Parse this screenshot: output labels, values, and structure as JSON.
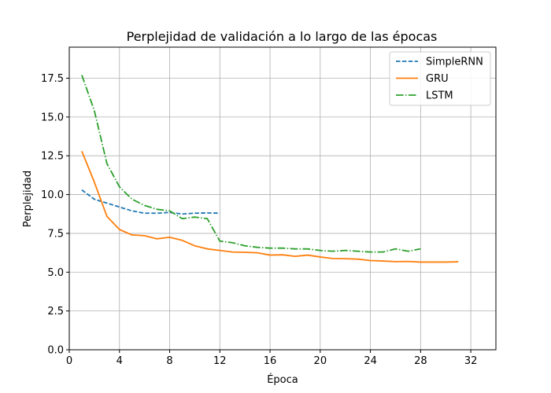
{
  "chart_data": {
    "type": "line",
    "title": "Perplejidad de validación a lo largo de las épocas",
    "xlabel": "Época",
    "ylabel": "Perplejidad",
    "xlim": [
      0,
      34
    ],
    "ylim": [
      0,
      19.5
    ],
    "xticks": [
      0,
      4,
      8,
      12,
      16,
      20,
      24,
      28,
      32
    ],
    "yticks": [
      0.0,
      2.5,
      5.0,
      7.5,
      10.0,
      12.5,
      15.0,
      17.5
    ],
    "ytick_labels": [
      "0.0",
      "2.5",
      "5.0",
      "7.5",
      "10.0",
      "12.5",
      "15.0",
      "17.5"
    ],
    "grid": true,
    "legend_position": "top-right",
    "series": [
      {
        "name": "SimpleRNN",
        "color": "#1f77b4",
        "dash": "dashed",
        "x": [
          1,
          2,
          3,
          4,
          5,
          6,
          7,
          8,
          9,
          10,
          11,
          12
        ],
        "y": [
          10.3,
          9.7,
          9.45,
          9.2,
          8.95,
          8.8,
          8.8,
          8.85,
          8.75,
          8.8,
          8.82,
          8.8
        ]
      },
      {
        "name": "GRU",
        "color": "#ff7f0e",
        "dash": "solid",
        "x": [
          1,
          2,
          3,
          4,
          5,
          6,
          7,
          8,
          9,
          10,
          11,
          12,
          13,
          14,
          15,
          16,
          17,
          18,
          19,
          20,
          21,
          22,
          23,
          24,
          25,
          26,
          27,
          28,
          29,
          30,
          31
        ],
        "y": [
          12.8,
          10.8,
          8.6,
          7.75,
          7.4,
          7.35,
          7.15,
          7.25,
          7.05,
          6.7,
          6.5,
          6.4,
          6.3,
          6.28,
          6.25,
          6.1,
          6.12,
          6.02,
          6.1,
          5.98,
          5.88,
          5.87,
          5.84,
          5.75,
          5.72,
          5.68,
          5.69,
          5.65,
          5.65,
          5.65,
          5.67
        ]
      },
      {
        "name": "LSTM",
        "color": "#2ca02c",
        "dash": "dashdot",
        "x": [
          1,
          2,
          3,
          4,
          5,
          6,
          7,
          8,
          9,
          10,
          11,
          12,
          13,
          14,
          15,
          16,
          17,
          18,
          19,
          20,
          21,
          22,
          23,
          24,
          25,
          26,
          27,
          28
        ],
        "y": [
          17.7,
          15.4,
          12.0,
          10.5,
          9.7,
          9.3,
          9.05,
          8.95,
          8.45,
          8.55,
          8.45,
          7.0,
          6.9,
          6.7,
          6.6,
          6.55,
          6.55,
          6.5,
          6.5,
          6.4,
          6.35,
          6.4,
          6.35,
          6.3,
          6.3,
          6.5,
          6.35,
          6.5
        ]
      }
    ]
  }
}
